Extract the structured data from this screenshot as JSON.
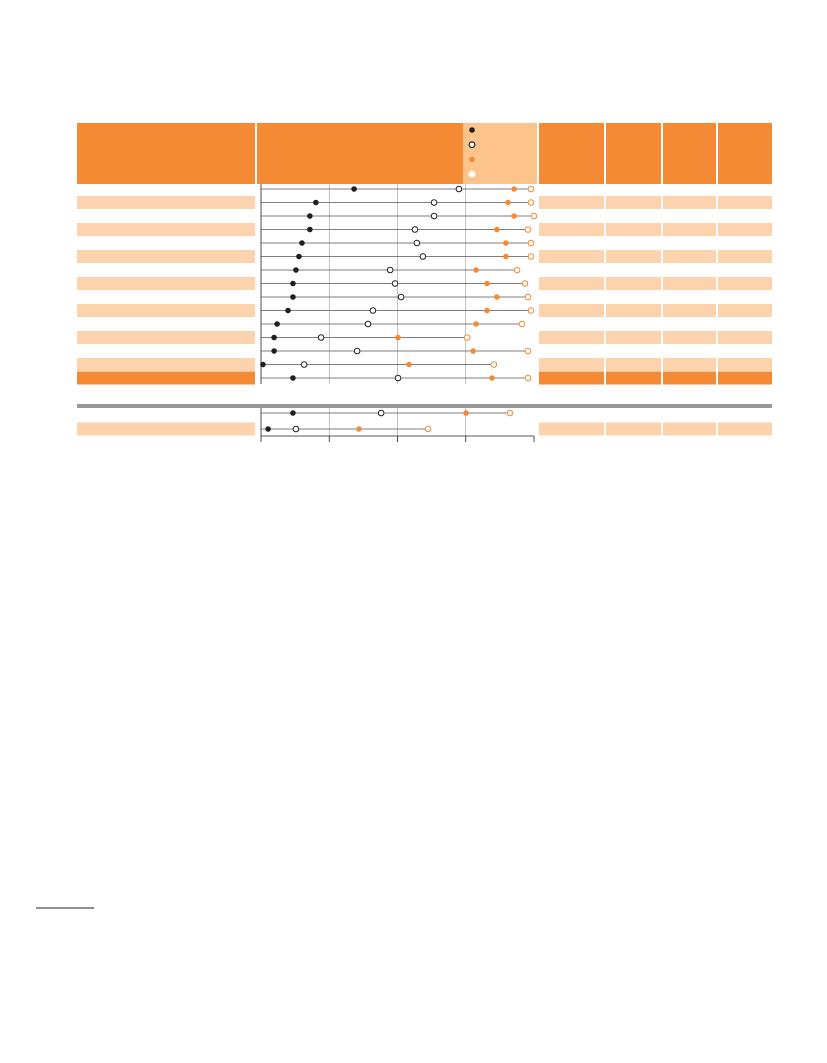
{
  "chart_data": {
    "type": "dot",
    "xlim": [
      0,
      100
    ],
    "xticks": [
      0,
      25,
      50,
      75,
      100
    ],
    "grid": true,
    "series": [
      {
        "color": "#231f20",
        "marker": "filled",
        "values": [
          34.1,
          20.1,
          17.9,
          17.9,
          15.0,
          13.9,
          12.8,
          11.7,
          11.7,
          9.9,
          5.9,
          4.8,
          4.8,
          0.7,
          11.7,
          11.7,
          2.6
        ]
      },
      {
        "color": "#231f20",
        "marker": "open",
        "values": [
          72.5,
          63.4,
          63.4,
          56.4,
          57.1,
          59.3,
          47.3,
          49.1,
          51.3,
          41.0,
          39.2,
          22.0,
          35.2,
          15.8,
          50.2,
          44.0,
          12.8
        ]
      },
      {
        "color": "#f58a35",
        "marker": "filled",
        "values": [
          92.7,
          90.5,
          92.7,
          86.4,
          89.7,
          89.7,
          78.8,
          82.8,
          86.4,
          82.8,
          78.8,
          50.2,
          77.7,
          54.2,
          84.6,
          75.1,
          35.9
        ]
      },
      {
        "color": "#f58a35",
        "marker": "open",
        "values": [
          98.9,
          98.9,
          100,
          97.8,
          98.9,
          98.9,
          93.8,
          96.7,
          97.8,
          98.9,
          95.6,
          75.5,
          97.8,
          85.3,
          97.8,
          91.2,
          61.2
        ]
      }
    ]
  }
}
